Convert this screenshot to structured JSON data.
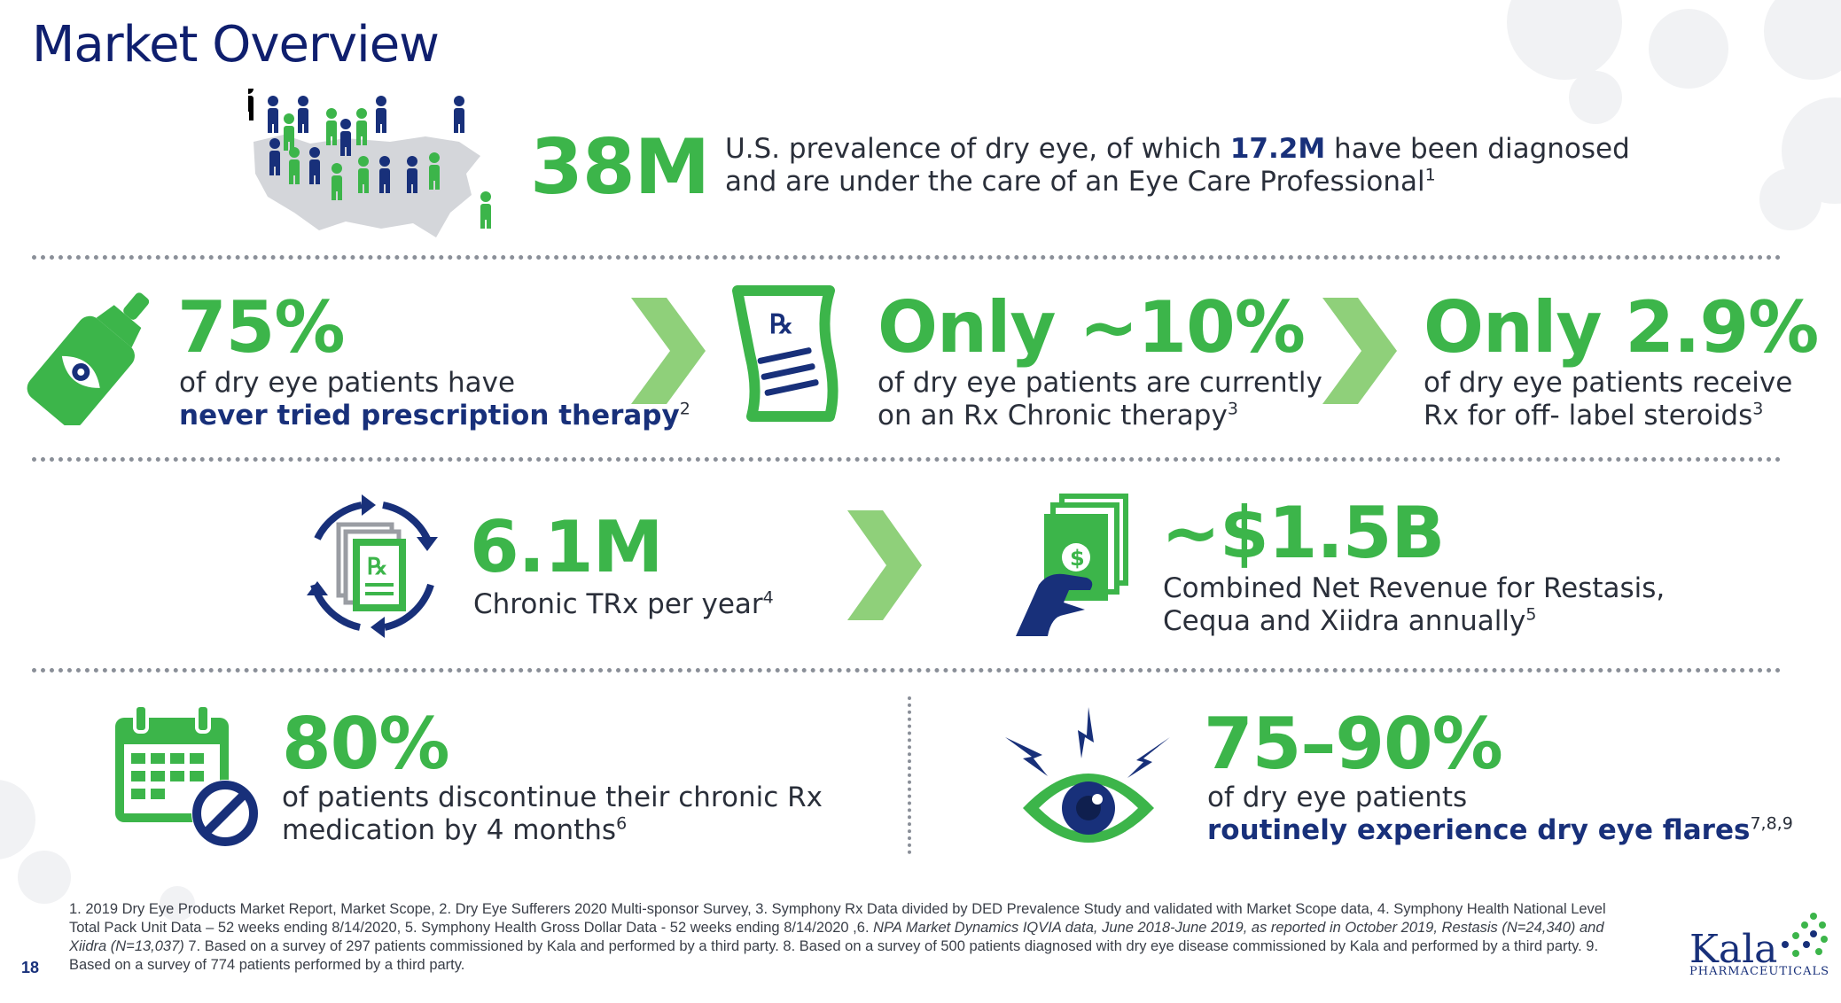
{
  "slide": {
    "title": "Market Overview",
    "page_number": "18"
  },
  "prevalence": {
    "stat": "38M",
    "line1_pre": "U.S. prevalence of dry eye, of which ",
    "line1_bold": "17.2M",
    "line1_post": " have been diagnosed",
    "line2": "and are under the care of an Eye Care Professional",
    "ref": "1"
  },
  "never_tried": {
    "stat": "75%",
    "line1": "of dry eye patients have",
    "line2_bold": "never tried prescription therapy",
    "ref": "2"
  },
  "chronic": {
    "stat": "Only ~10%",
    "line1": "of dry eye patients are currently",
    "line2": "on an Rx Chronic therapy",
    "ref": "3"
  },
  "steroids": {
    "stat": "Only 2.9%",
    "line1": "of dry eye patients receive",
    "line2": "Rx for off- label steroids",
    "ref": "3"
  },
  "trx": {
    "stat": "6.1M",
    "line1": "Chronic TRx per year",
    "ref": "4"
  },
  "revenue": {
    "stat": "~$1.5B",
    "line1": "Combined Net Revenue for Restasis,",
    "line2": "Cequa and Xiidra annually",
    "ref": "5"
  },
  "discontinue": {
    "stat": "80%",
    "line1": "of patients discontinue their chronic Rx",
    "line2": "medication by 4 months",
    "ref": "6"
  },
  "flares": {
    "stat": "75–90%",
    "line1": "of dry eye patients",
    "line2_bold": "routinely experience dry eye flares",
    "ref": "7,8,9"
  },
  "icons": {
    "rx_glyph": "℞",
    "dollar_glyph": "$"
  },
  "footnotes": {
    "p1": "1. 2019 Dry Eye Products Market Report, Market Scope, 2. Dry Eye Sufferers 2020 Multi-sponsor Survey, 3. Symphony Rx Data divided by DED Prevalence Study and validated with Market Scope data, 4. Symphony Health National Level Total Pack Unit Data – 52 weeks ending 8/14/2020, 5. Symphony Health Gross Dollar Data - 52 weeks ending 8/14/2020 ,6. ",
    "p1_italic": "NPA Market Dynamics IQVIA data, June 2018-June 2019, as reported in October 2019, Restasis (N=24,340) and Xiidra (N=13,037)",
    "p2": " 7. Based on a survey of 297 patients commissioned by Kala and performed by a third party. 8. Based on a survey of 500 patients diagnosed with dry eye disease commissioned by Kala and performed by a third party. 9. Based on a survey of 774 patients performed by a third party."
  },
  "logo": {
    "name": "Kala",
    "subtitle": "PHARMACEUTICALS"
  },
  "colors": {
    "green": "#3cb54a",
    "navy": "#18307a",
    "chevron": "#8fd07a",
    "map_gray": "#d4d6da"
  }
}
